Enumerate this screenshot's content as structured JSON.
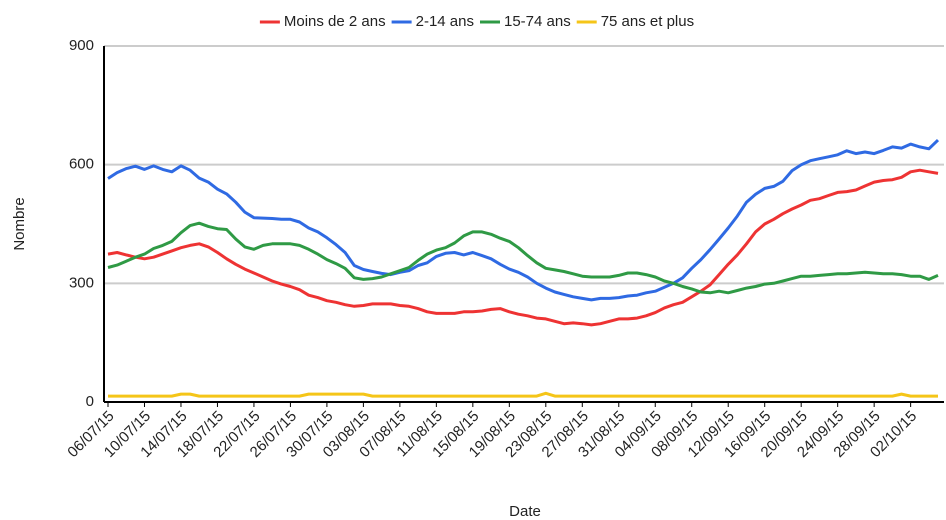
{
  "chart_data": {
    "type": "line",
    "x_label": "Date",
    "y_label": "Nombre",
    "categories": [
      "06/07/15",
      null,
      null,
      null,
      "10/07/15",
      null,
      null,
      null,
      "14/07/15",
      null,
      null,
      null,
      "18/07/15",
      null,
      null,
      null,
      "22/07/15",
      null,
      null,
      null,
      "26/07/15",
      null,
      null,
      null,
      "30/07/15",
      null,
      null,
      null,
      "03/08/15",
      null,
      null,
      null,
      "07/08/15",
      null,
      null,
      null,
      "11/08/15",
      null,
      null,
      null,
      "15/08/15",
      null,
      null,
      null,
      "19/08/15",
      null,
      null,
      null,
      "23/08/15",
      null,
      null,
      null,
      "27/08/15",
      null,
      null,
      null,
      "31/08/15",
      null,
      null,
      null,
      "04/09/15",
      null,
      null,
      null,
      "08/09/15",
      null,
      null,
      null,
      "12/09/15",
      null,
      null,
      null,
      "16/09/15",
      null,
      null,
      null,
      "20/09/15",
      null,
      null,
      null,
      "24/09/15",
      null,
      null,
      null,
      "28/09/15",
      null,
      null,
      null,
      "02/10/15",
      null,
      null,
      null
    ],
    "series": [
      {
        "name": "Moins de 2 ans",
        "color": "#ee3333",
        "values": [
          374,
          378,
          372,
          366,
          362,
          366,
          374,
          382,
          390,
          396,
          400,
          392,
          378,
          362,
          348,
          336,
          326,
          316,
          306,
          298,
          292,
          284,
          270,
          264,
          256,
          252,
          246,
          242,
          244,
          248,
          248,
          248,
          244,
          242,
          236,
          228,
          224,
          224,
          224,
          228,
          228,
          230,
          234,
          236,
          228,
          222,
          218,
          212,
          210,
          204,
          198,
          200,
          198,
          195,
          198,
          204,
          210,
          210,
          212,
          218,
          226,
          238,
          246,
          252,
          266,
          280,
          296,
          322,
          348,
          372,
          400,
          430,
          450,
          462,
          476,
          488,
          498,
          510,
          514,
          522,
          530,
          532,
          536,
          546,
          556,
          560,
          562,
          568,
          582,
          586,
          582,
          578
        ]
      },
      {
        "name": "2-14 ans",
        "color": "#2f6ae3",
        "values": [
          565,
          580,
          590,
          596,
          588,
          597,
          588,
          582,
          597,
          586,
          566,
          556,
          538,
          526,
          505,
          480,
          466,
          465,
          464,
          462,
          462,
          455,
          440,
          430,
          415,
          398,
          378,
          345,
          335,
          330,
          325,
          322,
          328,
          332,
          345,
          352,
          368,
          376,
          378,
          372,
          378,
          370,
          362,
          348,
          336,
          328,
          316,
          300,
          288,
          278,
          272,
          266,
          262,
          258,
          262,
          262,
          264,
          268,
          270,
          276,
          280,
          290,
          300,
          314,
          338,
          360,
          385,
          412,
          440,
          470,
          505,
          525,
          540,
          545,
          558,
          585,
          600,
          610,
          615,
          620,
          625,
          635,
          628,
          632,
          628,
          636,
          645,
          642,
          652,
          645,
          640,
          662
        ]
      },
      {
        "name": "15-74 ans",
        "color": "#2f9a45",
        "values": [
          340,
          346,
          356,
          366,
          374,
          388,
          396,
          406,
          428,
          446,
          452,
          444,
          438,
          436,
          412,
          392,
          386,
          396,
          400,
          400,
          400,
          396,
          386,
          374,
          360,
          350,
          338,
          314,
          310,
          312,
          316,
          324,
          332,
          340,
          358,
          374,
          384,
          390,
          402,
          420,
          430,
          430,
          424,
          414,
          406,
          390,
          370,
          352,
          338,
          334,
          330,
          324,
          318,
          316,
          316,
          316,
          320,
          326,
          326,
          322,
          316,
          306,
          300,
          292,
          286,
          278,
          276,
          280,
          276,
          282,
          288,
          292,
          298,
          300,
          306,
          312,
          318,
          318,
          320,
          322,
          324,
          324,
          326,
          328,
          326,
          324,
          324,
          322,
          318,
          318,
          310,
          320
        ]
      },
      {
        "name": "75 ans et plus",
        "color": "#f5c518",
        "values": [
          15,
          15,
          15,
          15,
          15,
          15,
          15,
          15,
          20,
          20,
          15,
          15,
          15,
          15,
          15,
          15,
          15,
          15,
          15,
          15,
          15,
          15,
          20,
          20,
          20,
          20,
          20,
          20,
          20,
          15,
          15,
          15,
          15,
          15,
          15,
          15,
          15,
          15,
          15,
          15,
          15,
          15,
          15,
          15,
          15,
          15,
          15,
          15,
          22,
          15,
          15,
          15,
          15,
          15,
          15,
          15,
          15,
          15,
          15,
          15,
          15,
          15,
          15,
          15,
          15,
          15,
          15,
          15,
          15,
          15,
          15,
          15,
          15,
          15,
          15,
          15,
          15,
          15,
          15,
          15,
          15,
          15,
          15,
          15,
          15,
          15,
          15,
          20,
          15,
          15,
          15,
          15
        ]
      }
    ],
    "ylim": [
      0,
      900
    ],
    "yticks": [
      0,
      300,
      600,
      900
    ],
    "grid": true,
    "legend": "top"
  }
}
